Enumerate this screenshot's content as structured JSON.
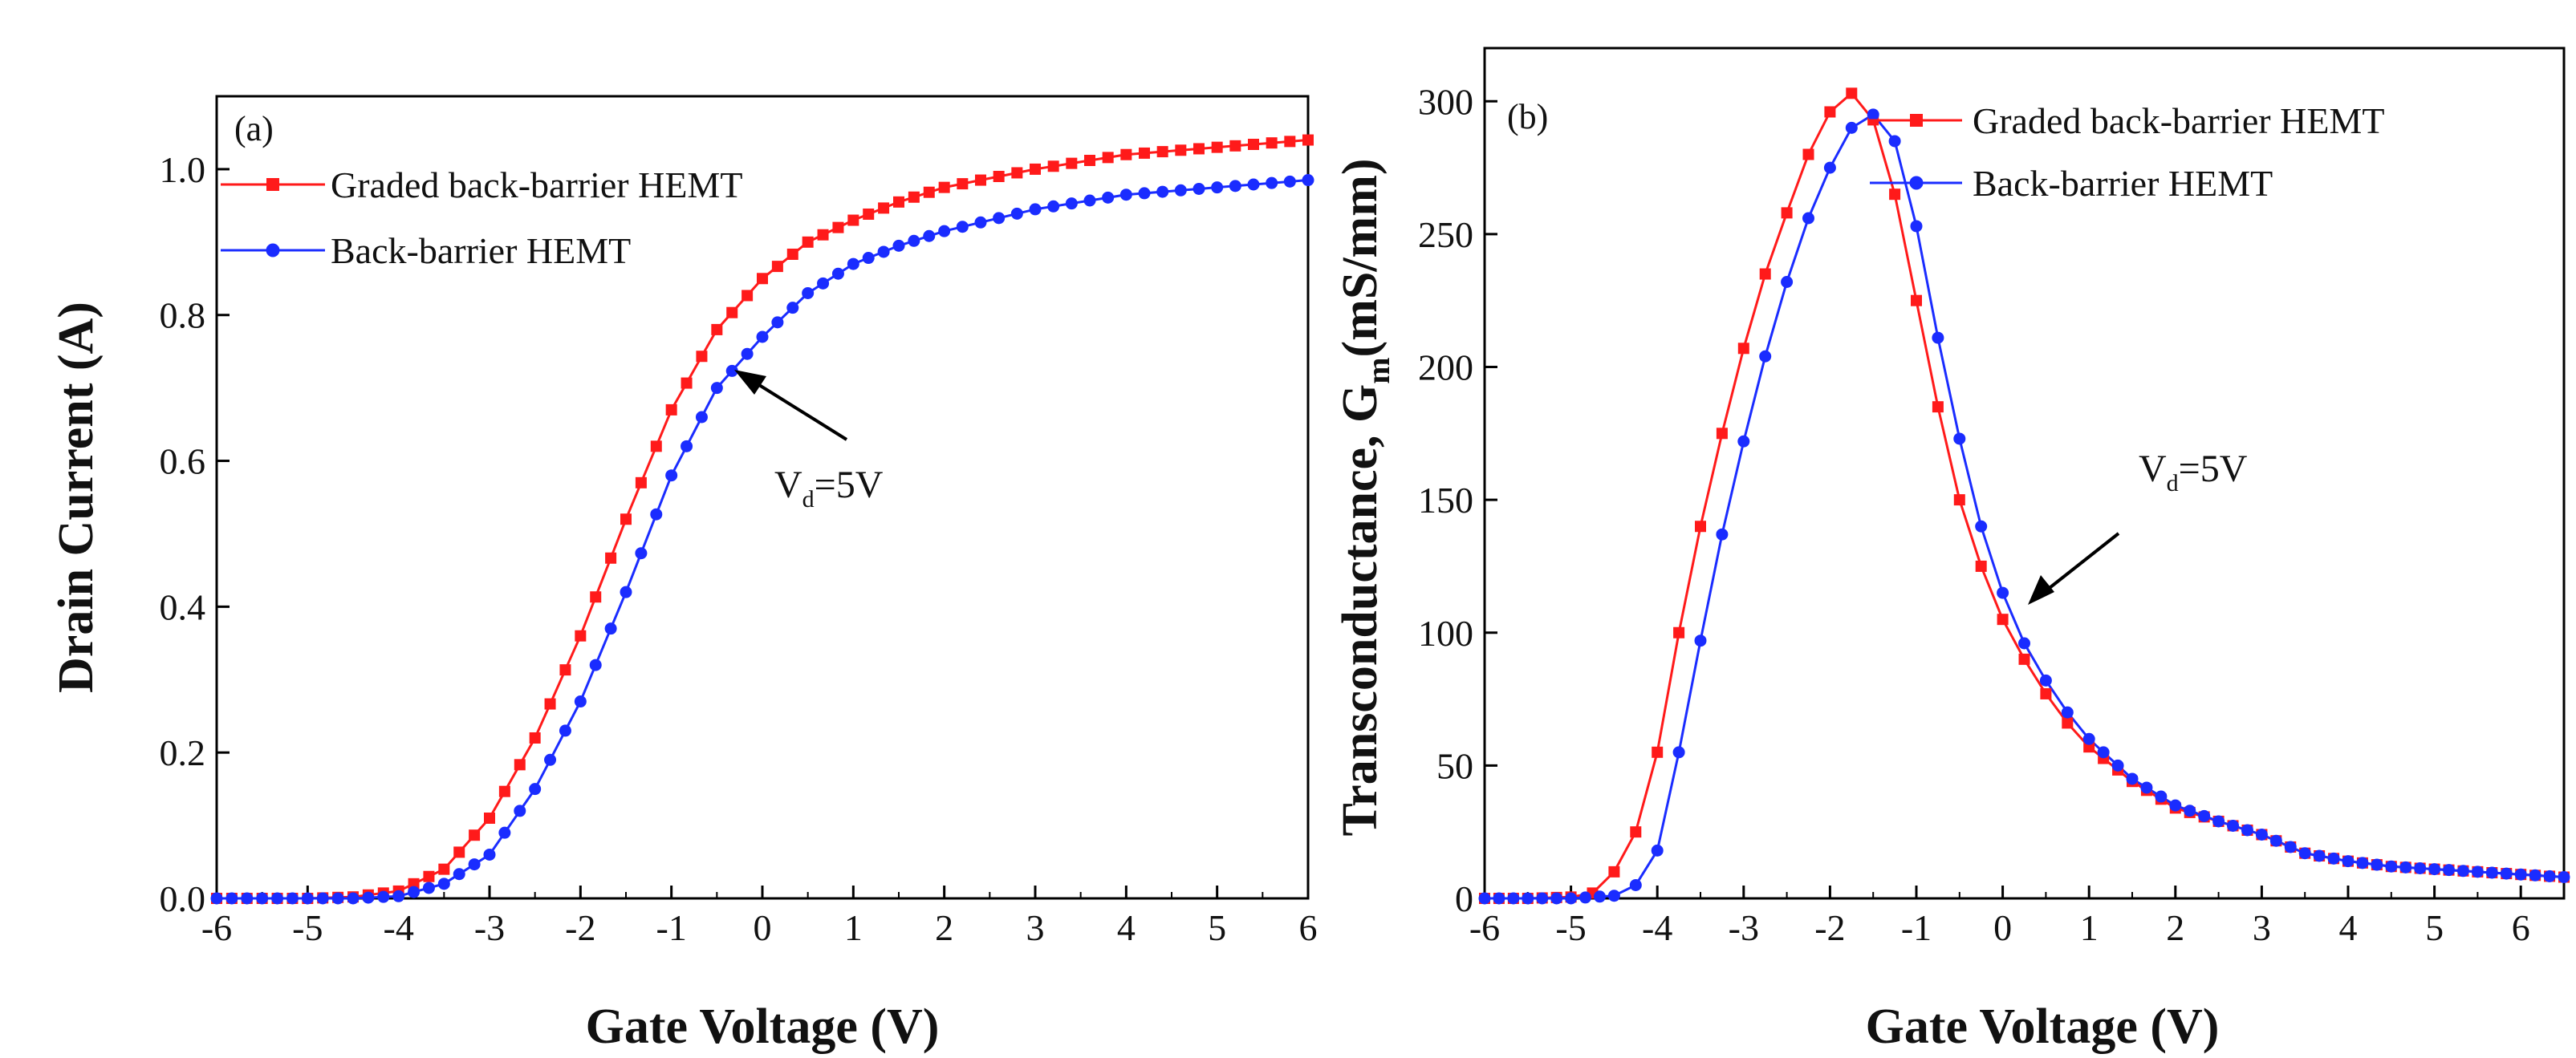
{
  "colors": {
    "graded": "#ff1a1a",
    "backbarrier": "#1a2cff",
    "axis": "#000000"
  },
  "chart_data": [
    {
      "type": "line",
      "panel_label": "(a)",
      "xlabel": "Gate Voltage (V)",
      "ylabel": "Drain Current (A)",
      "xlim": [
        -6,
        6
      ],
      "ylim": [
        0,
        1.1
      ],
      "xticks": [
        "-6",
        "-5",
        "-4",
        "-3",
        "-2",
        "-1",
        "0",
        "1",
        "2",
        "3",
        "4",
        "5",
        "6"
      ],
      "yticks": [
        "0.0",
        "0.2",
        "0.4",
        "0.6",
        "0.8",
        "1.0"
      ],
      "legend": [
        "Graded back-barrier HEMT",
        "Back-barrier HEMT"
      ],
      "legend_position": "top-left",
      "annotation": {
        "main": "V",
        "sub": "d",
        "tail": "=5V"
      },
      "series": [
        {
          "name": "Graded back-barrier HEMT",
          "color": "#ff1a1a",
          "marker": "square",
          "points": [
            [
              -6,
              0
            ],
            [
              -5.5,
              0
            ],
            [
              -5,
              0
            ],
            [
              -4.5,
              0.002
            ],
            [
              -4,
              0.01
            ],
            [
              -3.5,
              0.04
            ],
            [
              -3,
              0.11
            ],
            [
              -2.5,
              0.22
            ],
            [
              -2,
              0.36
            ],
            [
              -1.5,
              0.52
            ],
            [
              -1,
              0.67
            ],
            [
              -0.5,
              0.78
            ],
            [
              0,
              0.85
            ],
            [
              0.5,
              0.9
            ],
            [
              1,
              0.93
            ],
            [
              1.5,
              0.955
            ],
            [
              2,
              0.975
            ],
            [
              3,
              1.0
            ],
            [
              4,
              1.02
            ],
            [
              5,
              1.03
            ],
            [
              6,
              1.04
            ]
          ]
        },
        {
          "name": "Back-barrier HEMT",
          "color": "#1a2cff",
          "marker": "circle",
          "points": [
            [
              -6,
              0
            ],
            [
              -5.5,
              0
            ],
            [
              -5,
              0
            ],
            [
              -4.5,
              0
            ],
            [
              -4,
              0.003
            ],
            [
              -3.5,
              0.02
            ],
            [
              -3,
              0.06
            ],
            [
              -2.5,
              0.15
            ],
            [
              -2,
              0.27
            ],
            [
              -1.5,
              0.42
            ],
            [
              -1,
              0.58
            ],
            [
              -0.5,
              0.7
            ],
            [
              0,
              0.77
            ],
            [
              0.5,
              0.83
            ],
            [
              1,
              0.87
            ],
            [
              1.5,
              0.895
            ],
            [
              2,
              0.915
            ],
            [
              3,
              0.945
            ],
            [
              4,
              0.965
            ],
            [
              5,
              0.975
            ],
            [
              6,
              0.985
            ]
          ]
        }
      ]
    },
    {
      "type": "line",
      "panel_label": "(b)",
      "xlabel": "Gate Voltage (V)",
      "ylabel_main": "Transconductance, G",
      "ylabel_sub": "m",
      "ylabel_tail": "(mS/mm)",
      "xlim": [
        -6,
        6.5
      ],
      "ylim": [
        0,
        320
      ],
      "xticks": [
        "-6",
        "-5",
        "-4",
        "-3",
        "-2",
        "-1",
        "0",
        "1",
        "2",
        "3",
        "4",
        "5",
        "6"
      ],
      "yticks": [
        "0",
        "50",
        "100",
        "150",
        "200",
        "250",
        "300"
      ],
      "legend": [
        "Graded back-barrier HEMT",
        "Back-barrier HEMT"
      ],
      "legend_position": "top-right",
      "annotation": {
        "main": "V",
        "sub": "d",
        "tail": "=5V"
      },
      "series": [
        {
          "name": "Graded back-barrier HEMT",
          "color": "#ff1a1a",
          "marker": "square",
          "points": [
            [
              -6,
              0
            ],
            [
              -5.5,
              0
            ],
            [
              -5,
              0.5
            ],
            [
              -4.75,
              2
            ],
            [
              -4.5,
              10
            ],
            [
              -4.25,
              25
            ],
            [
              -4,
              55
            ],
            [
              -3.75,
              100
            ],
            [
              -3.5,
              140
            ],
            [
              -3.25,
              175
            ],
            [
              -3,
              207
            ],
            [
              -2.75,
              235
            ],
            [
              -2.5,
              258
            ],
            [
              -2.25,
              280
            ],
            [
              -2,
              296
            ],
            [
              -1.75,
              303
            ],
            [
              -1.5,
              293
            ],
            [
              -1.25,
              265
            ],
            [
              -1,
              225
            ],
            [
              -0.75,
              185
            ],
            [
              -0.5,
              150
            ],
            [
              -0.25,
              125
            ],
            [
              0,
              105
            ],
            [
              0.25,
              90
            ],
            [
              0.5,
              77
            ],
            [
              0.75,
              66
            ],
            [
              1,
              57
            ],
            [
              1.5,
              44
            ],
            [
              2,
              34
            ],
            [
              2.5,
              29
            ],
            [
              3,
              24
            ],
            [
              3.5,
              17
            ],
            [
              4,
              14
            ],
            [
              4.5,
              12
            ],
            [
              5,
              11
            ],
            [
              5.5,
              10
            ],
            [
              6,
              9
            ],
            [
              6.5,
              8
            ]
          ]
        },
        {
          "name": "Back-barrier HEMT",
          "color": "#1a2cff",
          "marker": "circle",
          "points": [
            [
              -6,
              0
            ],
            [
              -5.5,
              0
            ],
            [
              -5,
              0
            ],
            [
              -4.5,
              1
            ],
            [
              -4.25,
              5
            ],
            [
              -4,
              18
            ],
            [
              -3.75,
              55
            ],
            [
              -3.5,
              97
            ],
            [
              -3.25,
              137
            ],
            [
              -3,
              172
            ],
            [
              -2.75,
              204
            ],
            [
              -2.5,
              232
            ],
            [
              -2.25,
              256
            ],
            [
              -2,
              275
            ],
            [
              -1.75,
              290
            ],
            [
              -1.5,
              295
            ],
            [
              -1.25,
              285
            ],
            [
              -1,
              253
            ],
            [
              -0.75,
              211
            ],
            [
              -0.5,
              173
            ],
            [
              -0.25,
              140
            ],
            [
              0,
              115
            ],
            [
              0.25,
              96
            ],
            [
              0.5,
              82
            ],
            [
              0.75,
              70
            ],
            [
              1,
              60
            ],
            [
              1.5,
              45
            ],
            [
              2,
              35
            ],
            [
              2.5,
              29
            ],
            [
              3,
              24
            ],
            [
              3.5,
              17
            ],
            [
              4,
              14
            ],
            [
              4.5,
              12
            ],
            [
              5,
              11
            ],
            [
              5.5,
              10
            ],
            [
              6,
              9
            ],
            [
              6.5,
              8
            ]
          ]
        }
      ]
    }
  ]
}
